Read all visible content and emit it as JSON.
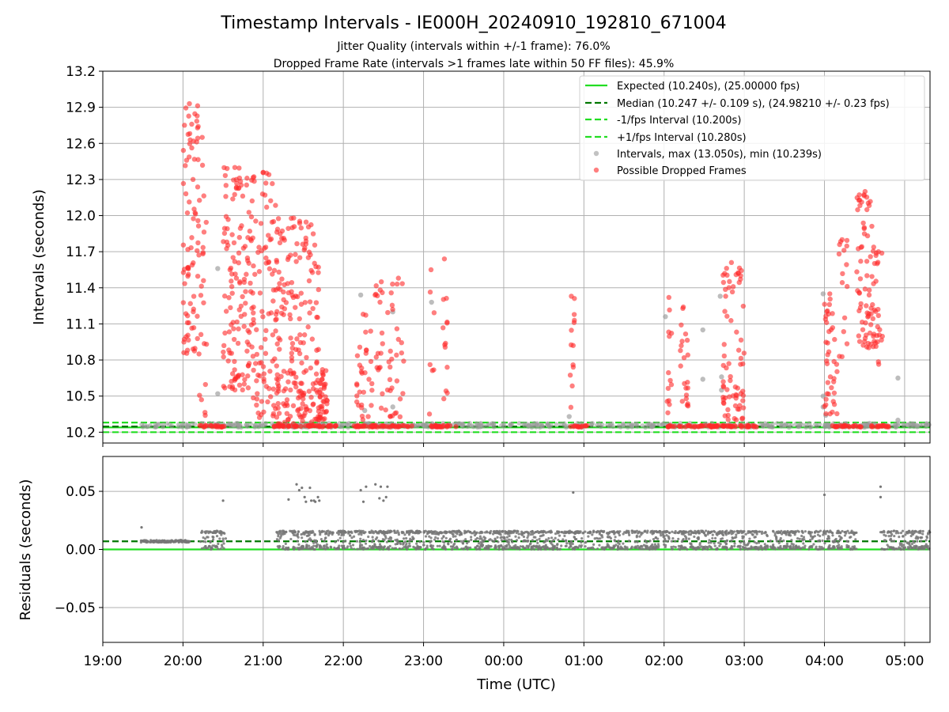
{
  "chart_data": [
    {
      "type": "scatter",
      "title": "Timestamp Intervals - IE000H_20240910_192810_671004",
      "subtitle_1": "Jitter Quality (intervals within +/-1 frame): 76.0%",
      "subtitle_2": "Dropped Frame Rate (intervals >1 frames late within 50 FF files): 45.9%",
      "xlabel": "",
      "ylabel": "Intervals (seconds)",
      "ylim": [
        10.11,
        13.2
      ],
      "yticks": [
        "10.2",
        "10.5",
        "10.8",
        "11.1",
        "11.4",
        "11.7",
        "12.0",
        "12.3",
        "12.6",
        "12.9",
        "13.2"
      ],
      "grid": true,
      "legend_position": "top-right",
      "legend": [
        {
          "label": "Expected (10.240s), (25.00000 fps)",
          "style": "solid-line",
          "color": "#22dd22"
        },
        {
          "label": "Median (10.247 +/- 0.109 s), (24.98210 +/- 0.23 fps)",
          "style": "dashed-line",
          "color": "#007700"
        },
        {
          "label": "-1/fps Interval (10.200s)",
          "style": "dashed-line",
          "color": "#22dd22"
        },
        {
          "label": "+1/fps Interval (10.280s)",
          "style": "dashed-line",
          "color": "#22dd22"
        },
        {
          "label": "Intervals, max (13.050s), min (10.239s)",
          "style": "marker",
          "color": "#9a9a9a"
        },
        {
          "label": "Possible Dropped Frames",
          "style": "marker",
          "color": "#ff2a2a"
        }
      ],
      "reference_lines": {
        "expected": 10.24,
        "median": 10.247,
        "minus_one_fps": 10.2,
        "plus_one_fps": 10.28
      },
      "clusters_dropped": [
        {
          "t_start": "20:00",
          "t_end": "20:12",
          "y_min": 10.85,
          "y_max": 12.93,
          "count": 80
        },
        {
          "t_start": "20:12",
          "t_end": "20:18",
          "y_min": 10.32,
          "y_max": 12.65,
          "count": 20
        },
        {
          "t_start": "20:30",
          "t_end": "20:52",
          "y_min": 10.55,
          "y_max": 12.4,
          "count": 130
        },
        {
          "t_start": "20:52",
          "t_end": "21:12",
          "y_min": 10.32,
          "y_max": 12.36,
          "count": 100
        },
        {
          "t_start": "21:10",
          "t_end": "21:42",
          "y_min": 10.27,
          "y_max": 11.98,
          "count": 190
        },
        {
          "t_start": "21:42",
          "t_end": "21:48",
          "y_min": 10.3,
          "y_max": 10.72,
          "count": 35
        },
        {
          "t_start": "22:10",
          "t_end": "22:22",
          "y_min": 10.3,
          "y_max": 11.18,
          "count": 30
        },
        {
          "t_start": "22:22",
          "t_end": "22:38",
          "y_min": 10.3,
          "y_max": 11.45,
          "count": 35
        },
        {
          "t_start": "22:38",
          "t_end": "22:46",
          "y_min": 10.3,
          "y_max": 11.48,
          "count": 14
        },
        {
          "t_start": "23:04",
          "t_end": "23:08",
          "y_min": 10.35,
          "y_max": 11.55,
          "count": 6
        },
        {
          "t_start": "23:14",
          "t_end": "23:18",
          "y_min": 10.35,
          "y_max": 11.64,
          "count": 12
        },
        {
          "t_start": "00:49",
          "t_end": "00:53",
          "y_min": 10.4,
          "y_max": 11.33,
          "count": 12
        },
        {
          "t_start": "02:02",
          "t_end": "02:06",
          "y_min": 10.32,
          "y_max": 11.32,
          "count": 12
        },
        {
          "t_start": "02:12",
          "t_end": "02:18",
          "y_min": 10.4,
          "y_max": 11.24,
          "count": 20
        },
        {
          "t_start": "02:44",
          "t_end": "03:00",
          "y_min": 10.3,
          "y_max": 11.61,
          "count": 70
        },
        {
          "t_start": "04:00",
          "t_end": "04:10",
          "y_min": 10.35,
          "y_max": 11.35,
          "count": 40
        },
        {
          "t_start": "04:10",
          "t_end": "04:18",
          "y_min": 10.8,
          "y_max": 11.8,
          "count": 15
        },
        {
          "t_start": "04:24",
          "t_end": "04:40",
          "y_min": 10.9,
          "y_max": 12.2,
          "count": 80
        },
        {
          "t_start": "04:38",
          "t_end": "04:44",
          "y_min": 10.6,
          "y_max": 11.7,
          "count": 12
        }
      ],
      "dropped_near_expected": [
        {
          "t_start": "20:12",
          "t_end": "20:31"
        },
        {
          "t_start": "21:07",
          "t_end": "21:55"
        },
        {
          "t_start": "22:08",
          "t_end": "22:52"
        },
        {
          "t_start": "23:04",
          "t_end": "23:26"
        },
        {
          "t_start": "00:50",
          "t_end": "01:03"
        },
        {
          "t_start": "02:02",
          "t_end": "02:42"
        },
        {
          "t_start": "02:43",
          "t_end": "03:12"
        },
        {
          "t_start": "04:05",
          "t_end": "04:28"
        },
        {
          "t_start": "04:35",
          "t_end": "04:50"
        }
      ],
      "gray_outliers": [
        {
          "t": "20:26",
          "y": 11.56
        },
        {
          "t": "20:26",
          "y": 10.52
        },
        {
          "t": "22:13",
          "y": 11.34
        },
        {
          "t": "22:16",
          "y": 10.38
        },
        {
          "t": "22:37",
          "y": 11.2
        },
        {
          "t": "22:37",
          "y": 10.41
        },
        {
          "t": "23:06",
          "y": 11.28
        },
        {
          "t": "00:49",
          "y": 10.33
        },
        {
          "t": "02:01",
          "y": 11.16
        },
        {
          "t": "02:29",
          "y": 11.05
        },
        {
          "t": "02:29",
          "y": 10.64
        },
        {
          "t": "02:42",
          "y": 11.33
        },
        {
          "t": "02:43",
          "y": 10.66
        },
        {
          "t": "02:43",
          "y": 10.55
        },
        {
          "t": "03:59",
          "y": 11.35
        },
        {
          "t": "03:59",
          "y": 10.5
        },
        {
          "t": "03:59",
          "y": 10.41
        },
        {
          "t": "04:01",
          "y": 10.34
        },
        {
          "t": "04:55",
          "y": 10.65
        },
        {
          "t": "04:55",
          "y": 10.3
        }
      ]
    },
    {
      "type": "scatter",
      "xlabel": "Time (UTC)",
      "ylabel": "Residuals (seconds)",
      "ylim": [
        -0.08,
        0.08
      ],
      "yticks": [
        "−0.05",
        "0.00",
        "0.05"
      ],
      "xticks": [
        "19:00",
        "20:00",
        "21:00",
        "22:00",
        "23:00",
        "00:00",
        "01:00",
        "02:00",
        "03:00",
        "04:00",
        "05:00"
      ],
      "xlim": [
        "19:00",
        "05:19"
      ],
      "grid": true,
      "reference_lines": {
        "zero": 0.0,
        "median": 0.007
      },
      "residual_bands": [
        {
          "t_start": "19:28",
          "t_end": "20:05",
          "y": 0.007
        },
        {
          "t_start": "20:13",
          "t_end": "20:32",
          "y_min": 0.0,
          "y_max": 0.016
        },
        {
          "t_start": "21:10",
          "t_end": "22:58",
          "y_min": 0.0,
          "y_max": 0.016
        },
        {
          "t_start": "23:00",
          "t_end": "03:46",
          "y_min": 0.0,
          "y_max": 0.016
        },
        {
          "t_start": "03:48",
          "t_end": "04:14",
          "y_min": 0.0,
          "y_max": 0.016
        },
        {
          "t_start": "04:15",
          "t_end": "04:24",
          "y_min": 0.0,
          "y_max": 0.016
        },
        {
          "t_start": "04:42",
          "t_end": "05:19",
          "y_min": 0.0,
          "y_max": 0.016
        }
      ],
      "residual_outliers": [
        {
          "t": "19:29",
          "y": 0.019
        },
        {
          "t": "20:30",
          "y": 0.042
        },
        {
          "t": "21:19",
          "y": 0.043
        },
        {
          "t": "21:25",
          "y": 0.056
        },
        {
          "t": "21:27",
          "y": 0.051
        },
        {
          "t": "21:29",
          "y": 0.053
        },
        {
          "t": "21:31",
          "y": 0.045
        },
        {
          "t": "21:32",
          "y": 0.041
        },
        {
          "t": "21:35",
          "y": 0.053
        },
        {
          "t": "21:36",
          "y": 0.042
        },
        {
          "t": "21:38",
          "y": 0.042
        },
        {
          "t": "21:39",
          "y": 0.041
        },
        {
          "t": "21:41",
          "y": 0.045
        },
        {
          "t": "21:42",
          "y": 0.042
        },
        {
          "t": "22:13",
          "y": 0.051
        },
        {
          "t": "22:15",
          "y": 0.041
        },
        {
          "t": "22:17",
          "y": 0.054
        },
        {
          "t": "22:24",
          "y": 0.056
        },
        {
          "t": "22:27",
          "y": 0.044
        },
        {
          "t": "22:28",
          "y": 0.054
        },
        {
          "t": "22:30",
          "y": 0.042
        },
        {
          "t": "22:32",
          "y": 0.045
        },
        {
          "t": "22:33",
          "y": 0.054
        },
        {
          "t": "00:52",
          "y": 0.049
        },
        {
          "t": "04:00",
          "y": 0.047
        },
        {
          "t": "04:42",
          "y": 0.054
        },
        {
          "t": "04:42",
          "y": 0.045
        }
      ]
    }
  ],
  "colors": {
    "expected": "#22dd22",
    "median": "#007700",
    "fps_bounds": "#22dd22",
    "interval_marker": "#9a9a9a",
    "dropped_marker": "#ff2a2a",
    "residual_marker": "#777777",
    "grid": "#b0b0b0"
  }
}
